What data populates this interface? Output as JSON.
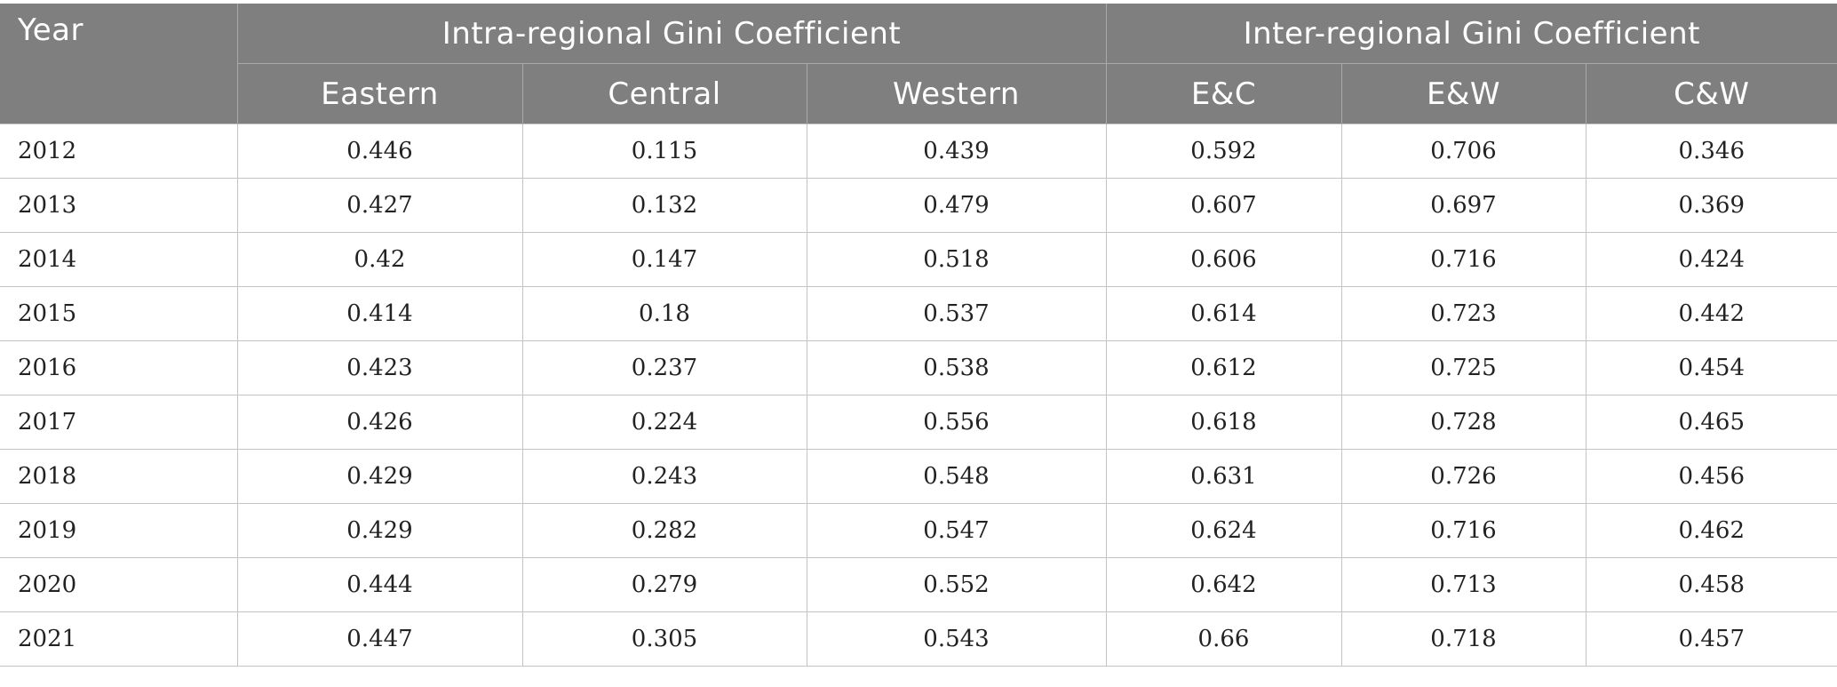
{
  "table": {
    "year_header": "Year",
    "intra_group_header": "Intra-regional Gini Coefficient",
    "inter_group_header": "Inter-regional Gini Coefficient",
    "subheaders": [
      "Eastern",
      "Central",
      "Western",
      "E&C",
      "E&W",
      "C&W"
    ],
    "rows": [
      {
        "year": "2012",
        "values": [
          "0.446",
          "0.115",
          "0.439",
          "0.592",
          "0.706",
          "0.346"
        ]
      },
      {
        "year": "2013",
        "values": [
          "0.427",
          "0.132",
          "0.479",
          "0.607",
          "0.697",
          "0.369"
        ]
      },
      {
        "year": "2014",
        "values": [
          "0.42",
          "0.147",
          "0.518",
          "0.606",
          "0.716",
          "0.424"
        ]
      },
      {
        "year": "2015",
        "values": [
          "0.414",
          "0.18",
          "0.537",
          "0.614",
          "0.723",
          "0.442"
        ]
      },
      {
        "year": "2016",
        "values": [
          "0.423",
          "0.237",
          "0.538",
          "0.612",
          "0.725",
          "0.454"
        ]
      },
      {
        "year": "2017",
        "values": [
          "0.426",
          "0.224",
          "0.556",
          "0.618",
          "0.728",
          "0.465"
        ]
      },
      {
        "year": "2018",
        "values": [
          "0.429",
          "0.243",
          "0.548",
          "0.631",
          "0.726",
          "0.456"
        ]
      },
      {
        "year": "2019",
        "values": [
          "0.429",
          "0.282",
          "0.547",
          "0.624",
          "0.716",
          "0.462"
        ]
      },
      {
        "year": "2020",
        "values": [
          "0.444",
          "0.279",
          "0.552",
          "0.642",
          "0.713",
          "0.458"
        ]
      },
      {
        "year": "2021",
        "values": [
          "0.447",
          "0.305",
          "0.543",
          "0.66",
          "0.718",
          "0.457"
        ]
      }
    ]
  }
}
